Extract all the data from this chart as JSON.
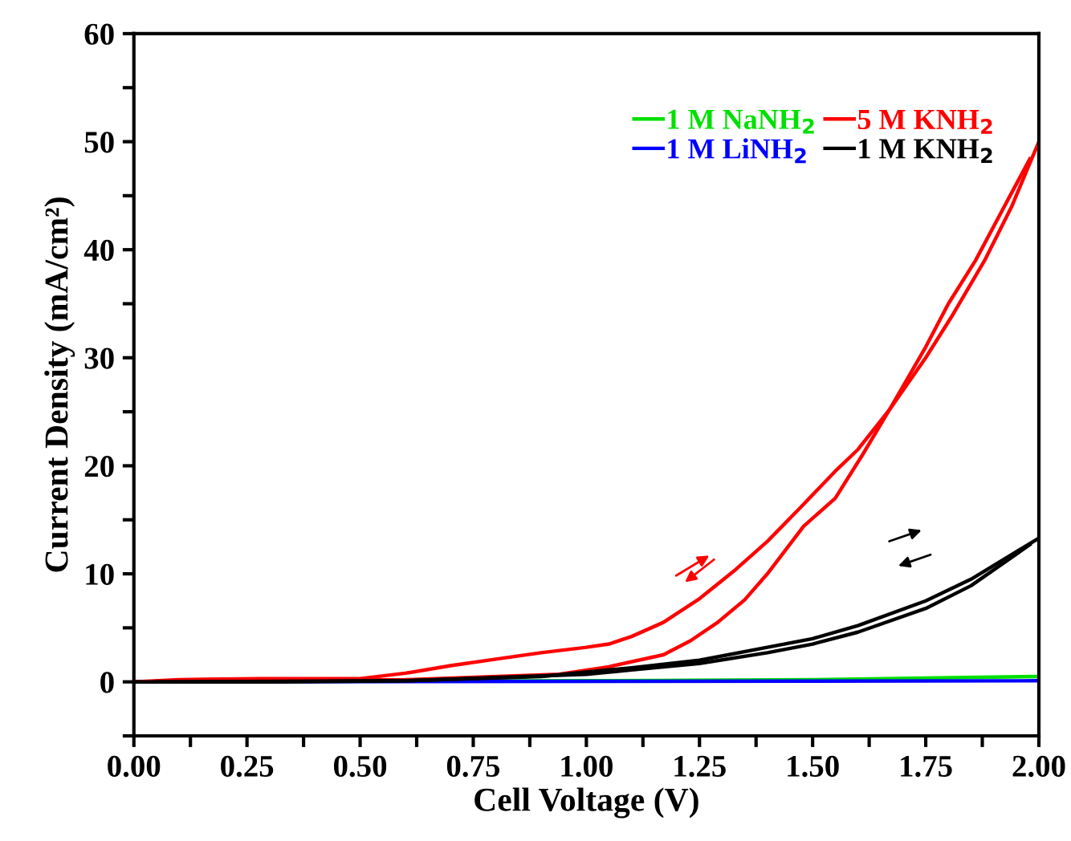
{
  "chart_data": {
    "type": "line",
    "xlabel": "Cell Voltage (V)",
    "ylabel": "Current Density (mA/cm²)",
    "xlim": [
      0,
      2.0
    ],
    "ylim": [
      -5,
      60
    ],
    "xticks": [
      {
        "value": 0,
        "label": "0.00"
      },
      {
        "value": 0.125,
        "label": null
      },
      {
        "value": 0.25,
        "label": "0.25"
      },
      {
        "value": 0.375,
        "label": null
      },
      {
        "value": 0.5,
        "label": "0.50"
      },
      {
        "value": 0.625,
        "label": null
      },
      {
        "value": 0.75,
        "label": "0.75"
      },
      {
        "value": 0.875,
        "label": null
      },
      {
        "value": 1.0,
        "label": "1.00"
      },
      {
        "value": 1.125,
        "label": null
      },
      {
        "value": 1.25,
        "label": "1.25"
      },
      {
        "value": 1.375,
        "label": null
      },
      {
        "value": 1.5,
        "label": "1.50"
      },
      {
        "value": 1.625,
        "label": null
      },
      {
        "value": 1.75,
        "label": "1.75"
      },
      {
        "value": 1.875,
        "label": null
      },
      {
        "value": 2.0,
        "label": "2.00"
      }
    ],
    "yticks": [
      {
        "value": -5,
        "label": null
      },
      0,
      {
        "value": 5,
        "label": null
      },
      10,
      {
        "value": 15,
        "label": null
      },
      20,
      {
        "value": 25,
        "label": null
      },
      30,
      {
        "value": 35,
        "label": null
      },
      40,
      {
        "value": 45,
        "label": null
      },
      50,
      {
        "value": 55,
        "label": null
      },
      60
    ],
    "grid": false,
    "legend": "top right",
    "marker": "none",
    "line_style": "solid",
    "series": [
      {
        "name": "1 M NaNH$_{2}$",
        "color": "#00e000",
        "x": [
          0,
          1.0,
          1.5,
          2.0
        ],
        "values": [
          0,
          0.1,
          0.2,
          0.5
        ]
      },
      {
        "name": "1 M LiNH$_{2}$",
        "color": "#0000ff",
        "x": [
          0,
          2.0
        ],
        "values": [
          0,
          0.1
        ]
      },
      {
        "name": "5 M KNH$_{2}$",
        "color": "#ff0000",
        "x": [
          0,
          0.1,
          0.28,
          0.5,
          0.6,
          0.7,
          0.8,
          0.9,
          1.0,
          1.05,
          1.1,
          1.17,
          1.25,
          1.33,
          1.4,
          1.47,
          1.55,
          1.6,
          1.67,
          1.75,
          1.81,
          1.88,
          1.94,
          2.0
        ],
        "values": [
          0,
          0.2,
          0.3,
          0.3,
          0.8,
          1.5,
          2.1,
          2.7,
          3.2,
          3.5,
          4.2,
          5.5,
          7.7,
          10.4,
          13.0,
          16.0,
          19.5,
          21.5,
          25.2,
          30.0,
          34.0,
          39.0,
          44.0,
          50.0
        ]
      },
      {
        "color": "#ff0000",
        "x": [
          0.05,
          0.6,
          0.94,
          1.05,
          1.17,
          1.23,
          1.29,
          1.35,
          1.4,
          1.48,
          1.55,
          1.61,
          1.67,
          1.75,
          1.8,
          1.86,
          1.93,
          1.98
        ],
        "values": [
          0,
          0.2,
          0.7,
          1.4,
          2.5,
          3.8,
          5.5,
          7.6,
          10.0,
          14.4,
          17.0,
          21.0,
          25.2,
          31.0,
          35.0,
          39.0,
          44.5,
          48.4
        ]
      },
      {
        "name": "1 M KNH$_{2}$",
        "color": "#000000",
        "x": [
          0,
          0.3,
          0.6,
          0.9,
          1.0,
          1.1,
          1.25,
          1.4,
          1.5,
          1.6,
          1.75,
          1.85,
          2.0
        ],
        "values": [
          0,
          0,
          0.1,
          0.5,
          0.9,
          1.3,
          2.0,
          3.2,
          4.0,
          5.2,
          7.5,
          9.5,
          13.3
        ]
      },
      {
        "color": "#000000",
        "x": [
          0.05,
          0.6,
          1.0,
          1.1,
          1.25,
          1.4,
          1.5,
          1.6,
          1.75,
          1.85,
          1.98
        ],
        "values": [
          0,
          0.1,
          0.7,
          1.1,
          1.7,
          2.7,
          3.5,
          4.6,
          6.8,
          8.9,
          12.7
        ]
      }
    ]
  }
}
